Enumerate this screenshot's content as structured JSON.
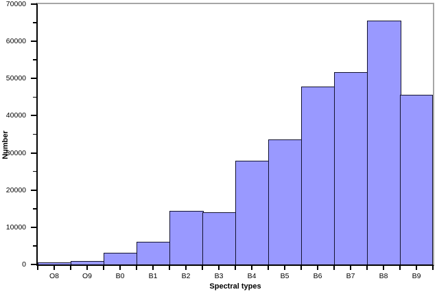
{
  "chart_data": {
    "type": "bar",
    "title": "",
    "xlabel": "Spectral types",
    "ylabel": "Number",
    "categories": [
      "O8",
      "O9",
      "B0",
      "B1",
      "B2",
      "B3",
      "B4",
      "B5",
      "B6",
      "B7",
      "B8",
      "B9"
    ],
    "values": [
      500,
      900,
      3200,
      6100,
      14400,
      14100,
      27900,
      33700,
      47900,
      51700,
      65600,
      45600
    ],
    "ylim": [
      0,
      70000
    ],
    "y_tick_labels": [
      "0",
      "10000",
      "20000",
      "30000",
      "40000",
      "50000",
      "60000",
      "70000"
    ],
    "y_major_step": 10000,
    "y_minor_step": 5000,
    "grid": false,
    "legend": false,
    "colors": {
      "bar_fill": "#9999FF",
      "bar_border": "#12122E",
      "axis": "#000000",
      "frame": "#A6A6A6",
      "text": "#000000",
      "background": "#FFFFFF"
    }
  }
}
